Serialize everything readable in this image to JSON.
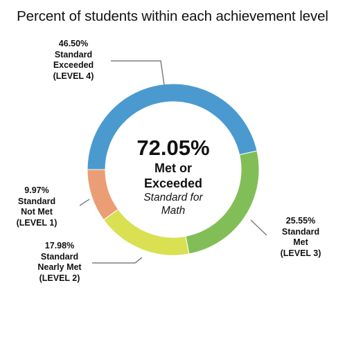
{
  "chart_data": {
    "type": "pie",
    "title": "Percent of students within each achievement level",
    "donut": true,
    "center_text": {
      "value": "72.05%",
      "line1": "Met or",
      "line2": "Exceeded",
      "line3": "Standard for",
      "line4": "Math"
    },
    "series": [
      {
        "percent_label": "46.50%",
        "label_lines": [
          "Standard",
          "Exceeded",
          "(LEVEL 4)"
        ],
        "value": 46.5,
        "color": "#4A9AD0"
      },
      {
        "percent_label": "25.55%",
        "label_lines": [
          "Standard",
          "Met",
          "(LEVEL 3)"
        ],
        "value": 25.55,
        "color": "#82BE57"
      },
      {
        "percent_label": "17.98%",
        "label_lines": [
          "Standard",
          "Nearly Met",
          "(LEVEL 2)"
        ],
        "value": 17.98,
        "color": "#D9E052"
      },
      {
        "percent_label": "9.97%",
        "label_lines": [
          "Standard",
          "Not Met",
          "(LEVEL 1)"
        ],
        "value": 9.97,
        "color": "#EB9E75"
      }
    ],
    "leader_color": "#7f7f7f"
  }
}
